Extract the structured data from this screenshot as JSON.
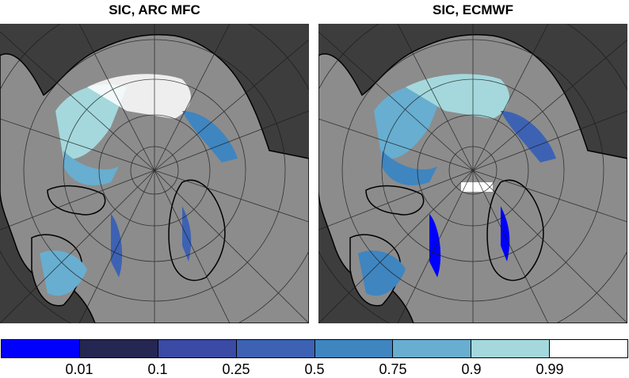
{
  "panels": [
    {
      "title": "SIC, ARC MFC"
    },
    {
      "title": "SIC, ECMWF"
    }
  ],
  "colorbar": {
    "colors": [
      "#0000ff",
      "#262652",
      "#3a4aa5",
      "#3d62b4",
      "#3f85c0",
      "#68aed0",
      "#a4d8dc",
      "#ffffff"
    ],
    "ticks": [
      "0.01",
      "0.1",
      "0.25",
      "0.5",
      "0.75",
      "0.9",
      "0.99"
    ]
  },
  "map_style": {
    "ocean_color": "#3d3d3d",
    "land_color": "#8c8c8c",
    "grid_color": "#1a1a1a"
  }
}
